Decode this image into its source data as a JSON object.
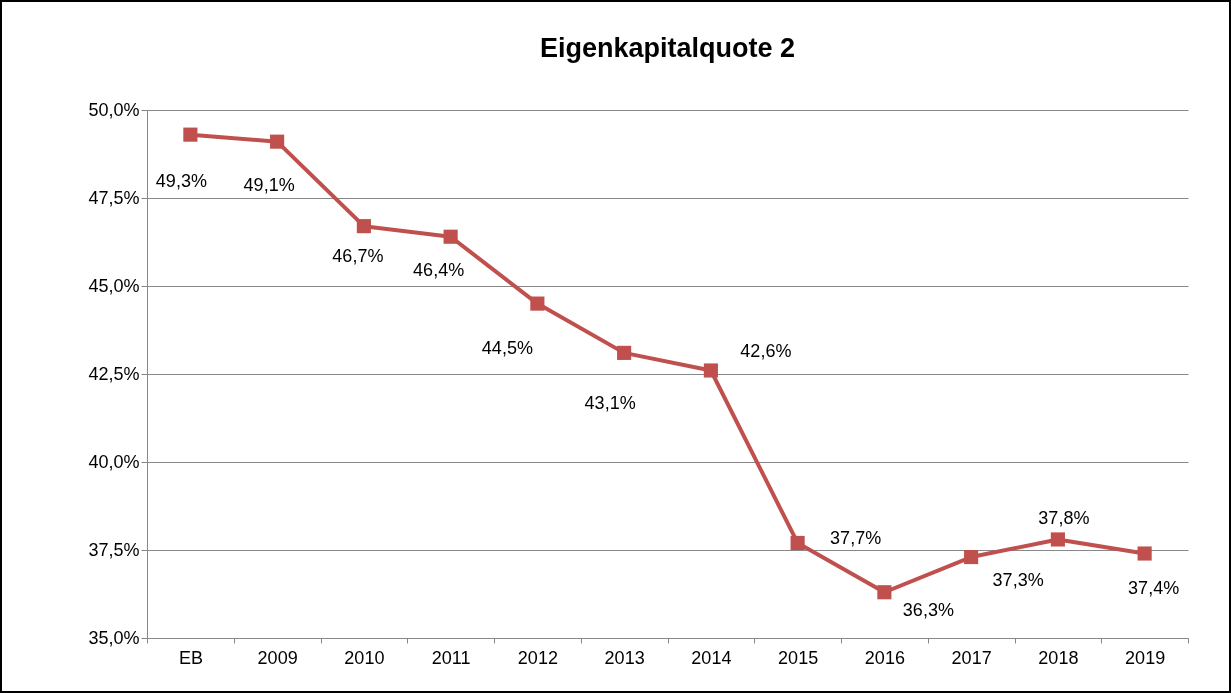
{
  "chart_data": {
    "type": "line",
    "title": "Eigenkapitalquote 2",
    "categories": [
      "EB",
      "2009",
      "2010",
      "2011",
      "2012",
      "2013",
      "2014",
      "2015",
      "2016",
      "2017",
      "2018",
      "2019"
    ],
    "series": [
      {
        "color": "#c0504d",
        "values": [
          49.3,
          49.1,
          46.7,
          46.4,
          44.5,
          43.1,
          42.6,
          37.7,
          36.3,
          37.3,
          37.8,
          37.4
        ],
        "value_labels": [
          "49,3%",
          "49,1%",
          "46,7%",
          "46,4%",
          "44,5%",
          "43,1%",
          "42,6%",
          "37,7%",
          "36,3%",
          "37,3%",
          "37,8%",
          "37,4%"
        ]
      }
    ],
    "ylim": [
      35,
      50
    ],
    "yticks": [
      {
        "value": 35,
        "label": "35,0%"
      },
      {
        "value": 37.5,
        "label": "37,5%"
      },
      {
        "value": 40,
        "label": "40,0%"
      },
      {
        "value": 42.5,
        "label": "42,5%"
      },
      {
        "value": 45,
        "label": "45,0%"
      },
      {
        "value": 47.5,
        "label": "47,5%"
      },
      {
        "value": 50,
        "label": "50,0%"
      }
    ],
    "grid": "y",
    "marker": "square",
    "line_style": "solid"
  }
}
